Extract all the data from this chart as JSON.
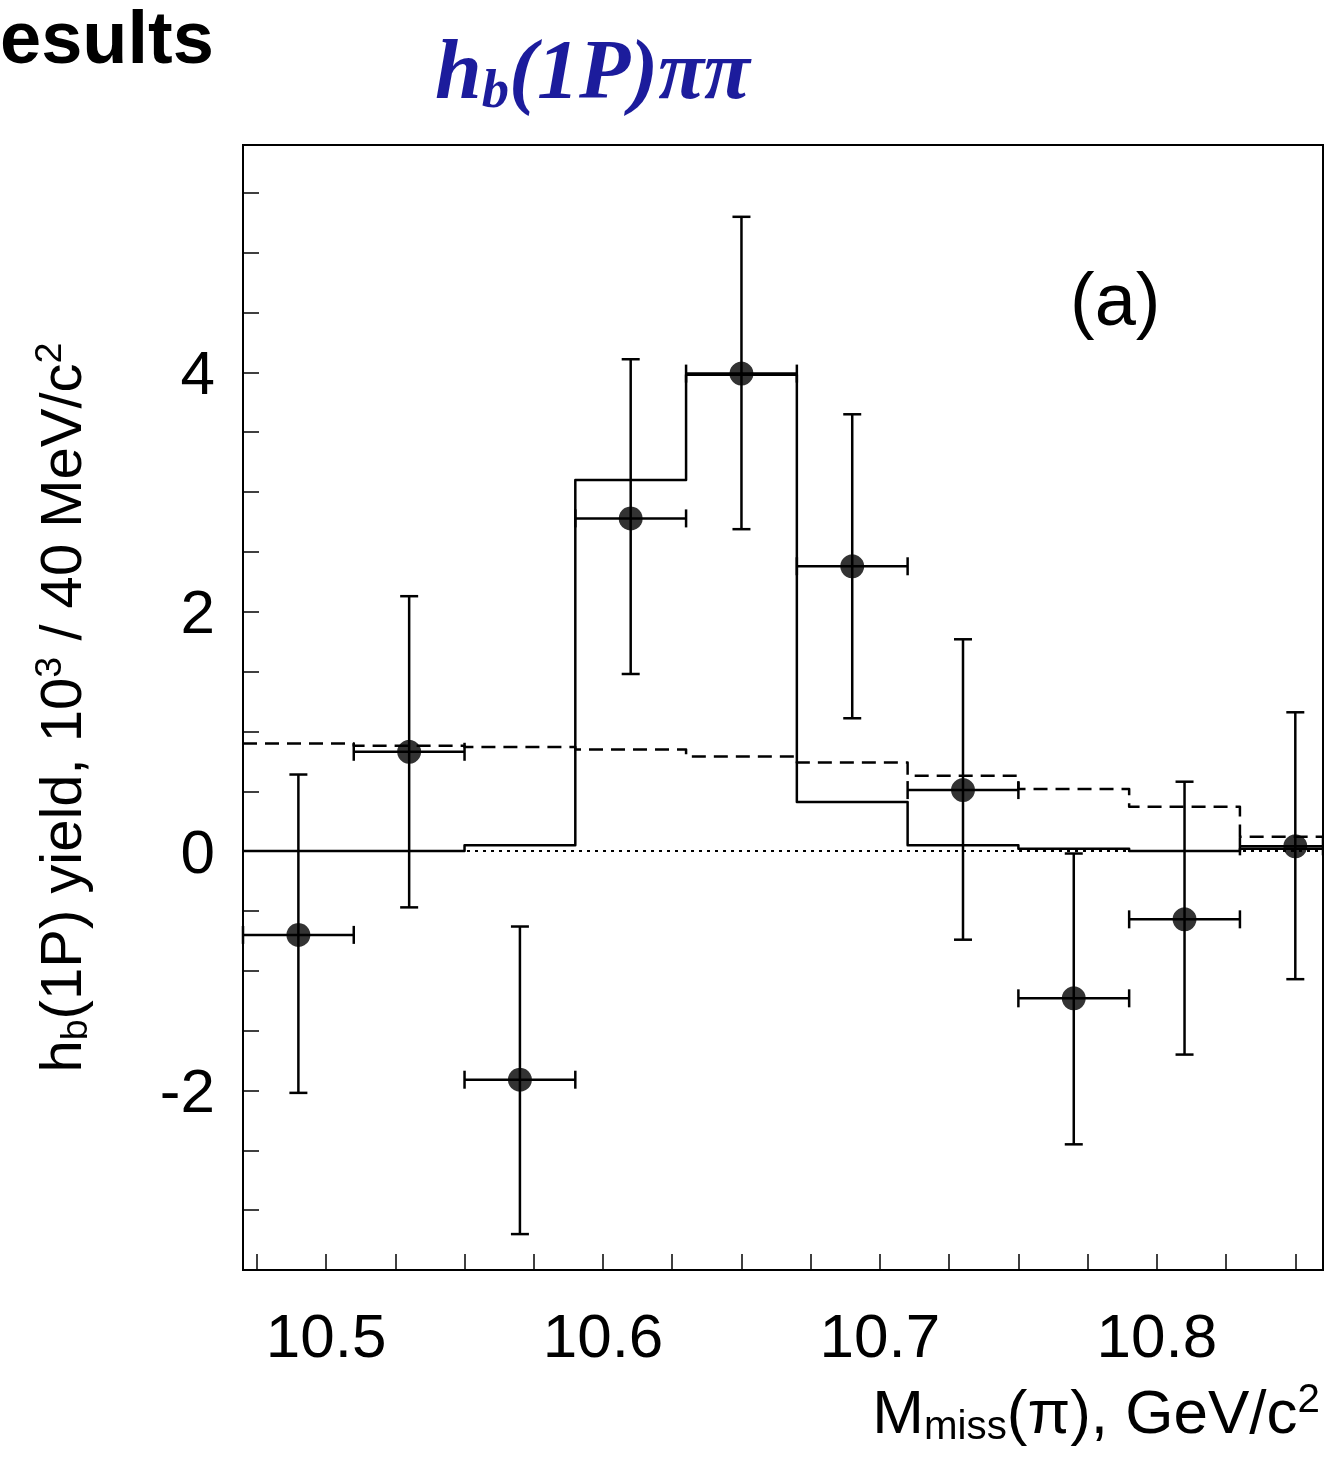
{
  "chart_data": {
    "type": "scatter",
    "title": "h$_{b}$(1P)ππ",
    "xlabel": "M$_{miss}$(π), GeV/c$^{2}$",
    "ylabel": "h$_{b}$(1P) yield, 10$^{3}$ / 40 MeV/c$^{2}$",
    "annotations": [
      "esults",
      "(a)"
    ],
    "xlim": [
      10.47,
      10.86
    ],
    "ylim": [
      -3.5,
      5.9
    ],
    "xticks": [
      {
        "value": 10.475,
        "label": null
      },
      10.5,
      {
        "value": 10.525,
        "label": null
      },
      {
        "value": 10.55,
        "label": null
      },
      {
        "value": 10.575,
        "label": null
      },
      10.6,
      {
        "value": 10.625,
        "label": null
      },
      {
        "value": 10.65,
        "label": null
      },
      {
        "value": 10.675,
        "label": null
      },
      10.7,
      {
        "value": 10.725,
        "label": null
      },
      {
        "value": 10.75,
        "label": null
      },
      {
        "value": 10.775,
        "label": null
      },
      10.8,
      {
        "value": 10.825,
        "label": null
      },
      {
        "value": 10.85,
        "label": null
      }
    ],
    "yticks": [
      {
        "value": -3,
        "label": null
      },
      {
        "value": -2.5,
        "label": null
      },
      -2,
      {
        "value": -1.5,
        "label": null
      },
      {
        "value": -1,
        "label": null
      },
      {
        "value": -0.5,
        "label": null
      },
      0,
      {
        "value": 0.5,
        "label": null
      },
      {
        "value": 1,
        "label": null
      },
      {
        "value": 1.5,
        "label": null
      },
      2,
      {
        "value": 2.5,
        "label": null
      },
      {
        "value": 3,
        "label": null
      },
      {
        "value": 3.5,
        "label": null
      },
      4,
      {
        "value": 4.5,
        "label": null
      },
      {
        "value": 5,
        "label": null
      },
      {
        "value": 5.5,
        "label": null
      }
    ],
    "ref_lines": [
      {
        "axis": "y",
        "value": 0,
        "color": "#000000",
        "line_style": "dotted"
      }
    ],
    "series": [
      {
        "type": "histogram",
        "color": "#000000",
        "line_style": "solid",
        "bins": [
          10.47,
          10.51,
          10.55,
          10.59,
          10.63,
          10.67,
          10.71,
          10.75,
          10.79,
          10.83,
          10.86
        ],
        "values": [
          0,
          0,
          0.05,
          3.1,
          3.98,
          0.41,
          0.05,
          0.02,
          0,
          0.02
        ]
      },
      {
        "type": "histogram",
        "color": "#000000",
        "line_style": "dashed",
        "bins": [
          10.47,
          10.51,
          10.55,
          10.59,
          10.63,
          10.67,
          10.71,
          10.75,
          10.79,
          10.83,
          10.86
        ],
        "values": [
          0.9,
          0.88,
          0.87,
          0.85,
          0.79,
          0.74,
          0.63,
          0.52,
          0.37,
          0.12
        ]
      },
      {
        "color": "#000000",
        "marker": "circle",
        "x": [
          10.49,
          10.53,
          10.57,
          10.61,
          10.65,
          10.69,
          10.73,
          10.77,
          10.81,
          10.85
        ],
        "values": [
          -0.7,
          0.83,
          -1.91,
          2.78,
          3.99,
          2.38,
          0.51,
          -1.23,
          -0.57,
          0.04
        ],
        "errors": [
          [
            -2.02,
            0.64
          ],
          [
            -0.47,
            2.13
          ],
          [
            -3.2,
            -0.63
          ],
          [
            1.48,
            4.11
          ],
          [
            2.69,
            5.3
          ],
          [
            1.11,
            3.65
          ],
          [
            -0.74,
            1.77
          ],
          [
            -2.45,
            -0.02
          ],
          [
            -1.7,
            0.58
          ],
          [
            -1.07,
            1.16
          ]
        ],
        "xerrors": [
          [
            10.47,
            10.51
          ],
          [
            10.51,
            10.55
          ],
          [
            10.55,
            10.59
          ],
          [
            10.59,
            10.63
          ],
          [
            10.63,
            10.67
          ],
          [
            10.67,
            10.71
          ],
          [
            10.71,
            10.75
          ],
          [
            10.75,
            10.79
          ],
          [
            10.79,
            10.83
          ],
          [
            10.83,
            10.86
          ]
        ]
      }
    ]
  }
}
